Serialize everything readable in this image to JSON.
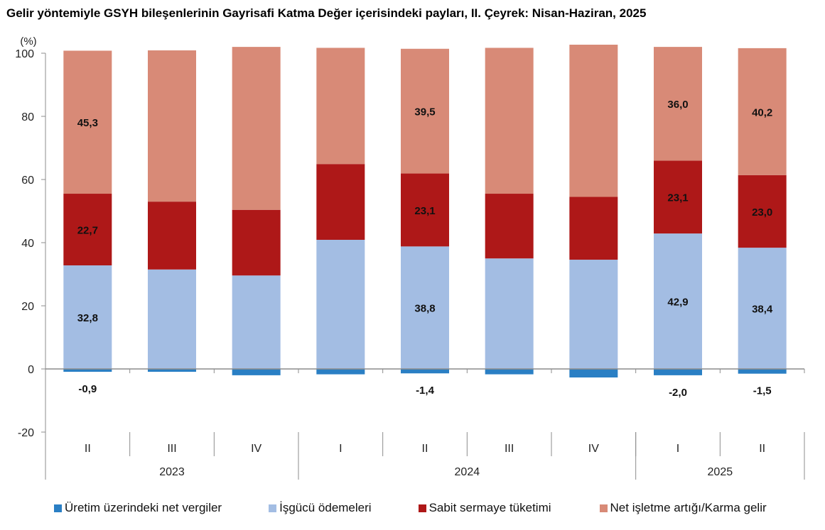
{
  "chart_data": {
    "type": "bar",
    "stacked": true,
    "title": "Gelir yöntemiyle GSYH bileşenlerinin Gayrisafi Katma Değer içerisindeki payları, II. Çeyrek: Nisan-Haziran, 2025",
    "ylabel": "(%)",
    "xlabel": "",
    "ylim": [
      -20,
      100
    ],
    "yticks": [
      100,
      80,
      60,
      40,
      20,
      0,
      -20
    ],
    "categories": [
      "II",
      "III",
      "IV",
      "I",
      "II",
      "III",
      "IV",
      "I",
      "II"
    ],
    "groups": [
      {
        "label": "2023",
        "start": 0,
        "end": 3
      },
      {
        "label": "2024",
        "start": 3,
        "end": 7
      },
      {
        "label": "2025",
        "start": 7,
        "end": 9
      }
    ],
    "series": [
      {
        "name": "Üretim üzerindeki net vergiler",
        "color": "#2a7fc4",
        "values": [
          -0.9,
          -0.9,
          -2.0,
          -1.7,
          -1.4,
          -1.7,
          -2.7,
          -2.0,
          -1.5
        ],
        "labels": [
          "-0,9",
          "",
          "",
          "",
          "-1,4",
          "",
          "",
          "-2,0",
          "-1,5"
        ]
      },
      {
        "name": "İşgücü ödemeleri",
        "color": "#a3bde3",
        "values": [
          32.8,
          31.5,
          29.6,
          40.9,
          38.8,
          35.0,
          34.6,
          42.9,
          38.4
        ],
        "labels": [
          "32,8",
          "",
          "",
          "",
          "38,8",
          "",
          "",
          "42,9",
          "38,4"
        ]
      },
      {
        "name": "Sabit sermaye tüketimi",
        "color": "#ae1818",
        "values": [
          22.7,
          21.5,
          20.8,
          24.0,
          23.1,
          20.5,
          19.9,
          23.1,
          23.0
        ],
        "labels": [
          "22,7",
          "",
          "",
          "",
          "23,1",
          "",
          "",
          "23,1",
          "23,0"
        ]
      },
      {
        "name": "Net işletme artığı/Karma gelir",
        "color": "#d88a77",
        "values": [
          45.3,
          47.9,
          51.6,
          36.8,
          39.5,
          46.2,
          48.2,
          36.0,
          40.2
        ],
        "labels": [
          "45,3",
          "",
          "",
          "",
          "39,5",
          "",
          "",
          "36,0",
          "40,2"
        ]
      }
    ],
    "grid": false,
    "legend_position": "bottom"
  }
}
